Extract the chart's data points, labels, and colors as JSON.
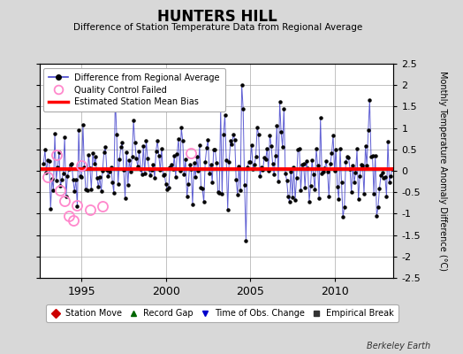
{
  "title": "HUNTERS HILL",
  "subtitle": "Difference of Station Temperature Data from Regional Average",
  "ylabel": "Monthly Temperature Anomaly Difference (°C)",
  "ylim": [
    -2.5,
    2.5
  ],
  "xlim": [
    1992.5,
    2013.5
  ],
  "yticks": [
    -2.5,
    -2.0,
    -1.5,
    -1.0,
    -0.5,
    0.0,
    0.5,
    1.0,
    1.5,
    2.0,
    2.5
  ],
  "xticks": [
    1995,
    2000,
    2005,
    2010
  ],
  "mean_bias": 0.05,
  "bias_color": "#ff0000",
  "line_color": "#4444cc",
  "dot_color": "#000000",
  "qc_color": "#ff88cc",
  "bg_color": "#d8d8d8",
  "plot_bg": "#ffffff",
  "berkeley_earth_text": "Berkeley Earth",
  "legend1_items": [
    {
      "label": "Difference from Regional Average"
    },
    {
      "label": "Quality Control Failed"
    },
    {
      "label": "Estimated Station Mean Bias"
    }
  ],
  "legend2_items": [
    {
      "label": "Station Move",
      "color": "#cc0000",
      "marker": "D"
    },
    {
      "label": "Record Gap",
      "color": "#006600",
      "marker": "^"
    },
    {
      "label": "Time of Obs. Change",
      "color": "#0000cc",
      "marker": "v"
    },
    {
      "label": "Empirical Break",
      "color": "#333333",
      "marker": "s"
    }
  ],
  "qc_failed_times": [
    1993.0,
    1993.5,
    1993.75,
    1994.0,
    1994.25,
    1994.5,
    1994.75,
    1995.0,
    1995.5,
    1996.25,
    2001.5
  ],
  "qc_failed_values": [
    -0.15,
    0.38,
    -0.45,
    -0.7,
    -1.05,
    -1.15,
    -0.8,
    0.12,
    -0.9,
    -0.82,
    0.42
  ],
  "seed": 77
}
